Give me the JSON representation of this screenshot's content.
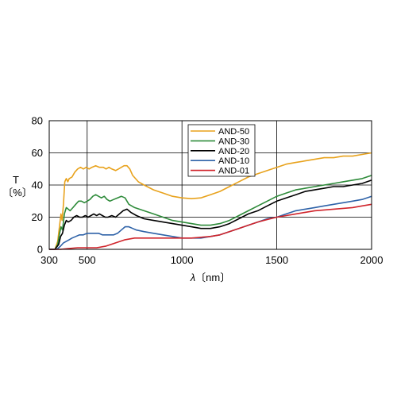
{
  "chart_data": {
    "type": "line",
    "ylabel_line1": "T",
    "ylabel_line2": "〔%〕",
    "xlabel_symbol": "λ",
    "xlabel_unit": "〔nm〕",
    "xlim": [
      300,
      2000
    ],
    "ylim": [
      0,
      80
    ],
    "x_ticks": [
      300,
      500,
      1000,
      1500,
      2000
    ],
    "y_ticks": [
      0,
      20,
      40,
      60,
      80
    ],
    "grid": true,
    "legend_position": "top-center",
    "series": [
      {
        "name": "AND-50",
        "color": "#e8a21c",
        "points": [
          [
            300,
            0
          ],
          [
            330,
            0
          ],
          [
            345,
            5
          ],
          [
            355,
            15
          ],
          [
            362,
            22
          ],
          [
            368,
            18
          ],
          [
            375,
            28
          ],
          [
            382,
            42
          ],
          [
            390,
            44
          ],
          [
            398,
            42
          ],
          [
            405,
            44
          ],
          [
            420,
            45
          ],
          [
            435,
            48
          ],
          [
            450,
            50
          ],
          [
            465,
            51
          ],
          [
            480,
            50
          ],
          [
            495,
            51
          ],
          [
            510,
            50
          ],
          [
            525,
            51
          ],
          [
            545,
            52
          ],
          [
            565,
            51
          ],
          [
            585,
            51
          ],
          [
            600,
            50
          ],
          [
            615,
            51
          ],
          [
            630,
            50
          ],
          [
            650,
            49
          ],
          [
            665,
            50
          ],
          [
            680,
            51
          ],
          [
            695,
            52
          ],
          [
            710,
            52
          ],
          [
            725,
            50
          ],
          [
            740,
            46
          ],
          [
            770,
            42
          ],
          [
            800,
            40
          ],
          [
            850,
            37
          ],
          [
            900,
            35
          ],
          [
            950,
            33
          ],
          [
            1000,
            32
          ],
          [
            1050,
            31.5
          ],
          [
            1100,
            32
          ],
          [
            1150,
            34
          ],
          [
            1200,
            36
          ],
          [
            1250,
            39
          ],
          [
            1300,
            42
          ],
          [
            1350,
            45
          ],
          [
            1400,
            47
          ],
          [
            1450,
            49
          ],
          [
            1500,
            51
          ],
          [
            1550,
            53
          ],
          [
            1600,
            54
          ],
          [
            1650,
            55
          ],
          [
            1700,
            56
          ],
          [
            1750,
            57
          ],
          [
            1800,
            57
          ],
          [
            1850,
            58
          ],
          [
            1900,
            58
          ],
          [
            1950,
            59
          ],
          [
            2000,
            60
          ]
        ]
      },
      {
        "name": "AND-30",
        "color": "#2e8b3a",
        "points": [
          [
            300,
            0
          ],
          [
            330,
            0
          ],
          [
            345,
            3
          ],
          [
            355,
            10
          ],
          [
            362,
            14
          ],
          [
            370,
            12
          ],
          [
            380,
            22
          ],
          [
            390,
            26
          ],
          [
            400,
            25
          ],
          [
            410,
            24
          ],
          [
            425,
            26
          ],
          [
            440,
            28
          ],
          [
            455,
            30
          ],
          [
            470,
            30
          ],
          [
            485,
            29
          ],
          [
            500,
            30
          ],
          [
            515,
            31
          ],
          [
            530,
            33
          ],
          [
            545,
            34
          ],
          [
            560,
            33
          ],
          [
            575,
            32
          ],
          [
            590,
            33
          ],
          [
            605,
            31
          ],
          [
            620,
            30
          ],
          [
            640,
            31
          ],
          [
            660,
            32
          ],
          [
            680,
            33
          ],
          [
            700,
            32
          ],
          [
            720,
            28
          ],
          [
            750,
            26
          ],
          [
            800,
            24
          ],
          [
            850,
            22
          ],
          [
            900,
            20
          ],
          [
            950,
            18
          ],
          [
            1000,
            17
          ],
          [
            1050,
            16
          ],
          [
            1100,
            15
          ],
          [
            1150,
            15
          ],
          [
            1200,
            16
          ],
          [
            1250,
            18
          ],
          [
            1300,
            21
          ],
          [
            1350,
            24
          ],
          [
            1400,
            27
          ],
          [
            1450,
            30
          ],
          [
            1500,
            33
          ],
          [
            1550,
            35
          ],
          [
            1600,
            37
          ],
          [
            1650,
            38
          ],
          [
            1700,
            39
          ],
          [
            1750,
            40
          ],
          [
            1800,
            41
          ],
          [
            1850,
            42
          ],
          [
            1900,
            43
          ],
          [
            1950,
            44
          ],
          [
            2000,
            46
          ]
        ]
      },
      {
        "name": "AND-20",
        "color": "#000000",
        "points": [
          [
            300,
            0
          ],
          [
            330,
            0
          ],
          [
            350,
            3
          ],
          [
            360,
            8
          ],
          [
            370,
            10
          ],
          [
            380,
            15
          ],
          [
            390,
            18
          ],
          [
            400,
            17
          ],
          [
            415,
            18
          ],
          [
            430,
            20
          ],
          [
            445,
            21
          ],
          [
            460,
            20
          ],
          [
            475,
            20
          ],
          [
            490,
            21
          ],
          [
            505,
            20
          ],
          [
            520,
            21
          ],
          [
            535,
            22
          ],
          [
            550,
            21
          ],
          [
            565,
            22
          ],
          [
            580,
            21
          ],
          [
            595,
            20
          ],
          [
            610,
            20
          ],
          [
            630,
            21
          ],
          [
            650,
            20
          ],
          [
            670,
            22
          ],
          [
            690,
            24
          ],
          [
            710,
            25
          ],
          [
            730,
            23
          ],
          [
            760,
            21
          ],
          [
            800,
            19
          ],
          [
            850,
            18
          ],
          [
            900,
            17
          ],
          [
            950,
            16
          ],
          [
            1000,
            15
          ],
          [
            1050,
            14
          ],
          [
            1100,
            13
          ],
          [
            1150,
            13
          ],
          [
            1200,
            14
          ],
          [
            1250,
            16
          ],
          [
            1300,
            19
          ],
          [
            1350,
            22
          ],
          [
            1400,
            24
          ],
          [
            1450,
            27
          ],
          [
            1500,
            30
          ],
          [
            1550,
            32
          ],
          [
            1600,
            34
          ],
          [
            1650,
            36
          ],
          [
            1700,
            37
          ],
          [
            1750,
            38
          ],
          [
            1800,
            39
          ],
          [
            1850,
            39
          ],
          [
            1900,
            40
          ],
          [
            1950,
            41
          ],
          [
            2000,
            43
          ]
        ]
      },
      {
        "name": "AND-10",
        "color": "#2e62a8",
        "points": [
          [
            300,
            0
          ],
          [
            340,
            0
          ],
          [
            360,
            2
          ],
          [
            375,
            4
          ],
          [
            390,
            5
          ],
          [
            405,
            6
          ],
          [
            420,
            7
          ],
          [
            440,
            8
          ],
          [
            460,
            9
          ],
          [
            480,
            9
          ],
          [
            500,
            10
          ],
          [
            520,
            10
          ],
          [
            540,
            10
          ],
          [
            560,
            10
          ],
          [
            580,
            9
          ],
          [
            600,
            9
          ],
          [
            620,
            9
          ],
          [
            640,
            9
          ],
          [
            660,
            10
          ],
          [
            680,
            12
          ],
          [
            700,
            14
          ],
          [
            720,
            14
          ],
          [
            740,
            13
          ],
          [
            760,
            12
          ],
          [
            800,
            11
          ],
          [
            850,
            10
          ],
          [
            900,
            9
          ],
          [
            950,
            8
          ],
          [
            1000,
            7
          ],
          [
            1050,
            7
          ],
          [
            1100,
            7
          ],
          [
            1150,
            8
          ],
          [
            1200,
            9
          ],
          [
            1250,
            11
          ],
          [
            1300,
            13
          ],
          [
            1350,
            15
          ],
          [
            1400,
            17
          ],
          [
            1450,
            19
          ],
          [
            1500,
            20
          ],
          [
            1550,
            22
          ],
          [
            1600,
            24
          ],
          [
            1650,
            25
          ],
          [
            1700,
            26
          ],
          [
            1750,
            27
          ],
          [
            1800,
            28
          ],
          [
            1850,
            29
          ],
          [
            1900,
            30
          ],
          [
            1950,
            31
          ],
          [
            2000,
            33
          ]
        ]
      },
      {
        "name": "AND-01",
        "color": "#d0242b",
        "points": [
          [
            300,
            0
          ],
          [
            360,
            0
          ],
          [
            400,
            0.5
          ],
          [
            450,
            1
          ],
          [
            500,
            1
          ],
          [
            550,
            1
          ],
          [
            600,
            2
          ],
          [
            650,
            4
          ],
          [
            700,
            6
          ],
          [
            750,
            7
          ],
          [
            800,
            7
          ],
          [
            850,
            7
          ],
          [
            900,
            7
          ],
          [
            950,
            7
          ],
          [
            1000,
            7
          ],
          [
            1050,
            7
          ],
          [
            1100,
            7.5
          ],
          [
            1150,
            8
          ],
          [
            1200,
            9
          ],
          [
            1250,
            11
          ],
          [
            1300,
            13
          ],
          [
            1350,
            15
          ],
          [
            1400,
            17
          ],
          [
            1450,
            18.5
          ],
          [
            1500,
            20
          ],
          [
            1550,
            21
          ],
          [
            1600,
            22
          ],
          [
            1650,
            23
          ],
          [
            1700,
            24
          ],
          [
            1750,
            24.5
          ],
          [
            1800,
            25
          ],
          [
            1850,
            25.5
          ],
          [
            1900,
            26
          ],
          [
            1950,
            27
          ],
          [
            2000,
            28
          ]
        ]
      }
    ]
  }
}
